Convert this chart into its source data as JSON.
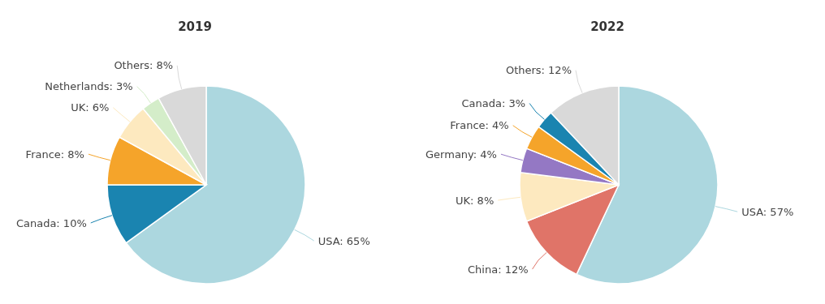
{
  "chart_data": [
    {
      "type": "pie",
      "title": "2019",
      "categories": [
        "USA",
        "Canada",
        "France",
        "UK",
        "Netherlands",
        "Others"
      ],
      "values": [
        65,
        10,
        8,
        6,
        3,
        8
      ],
      "value_labels": [
        "65%",
        "10%",
        "8%",
        "6%",
        "3%",
        "8%"
      ],
      "colors": [
        "#acd7df",
        "#1a84b0",
        "#f5a42a",
        "#fde9bf",
        "#d4edc9",
        "#d9d9d9"
      ]
    },
    {
      "type": "pie",
      "title": "2022",
      "categories": [
        "USA",
        "China",
        "UK",
        "Germany",
        "France",
        "Canada",
        "Others"
      ],
      "values": [
        57,
        12,
        8,
        4,
        4,
        3,
        12
      ],
      "value_labels": [
        "57%",
        "12%",
        "8%",
        "4%",
        "4%",
        "3%",
        "12%"
      ],
      "colors": [
        "#acd7df",
        "#e07468",
        "#fde9bf",
        "#9478c4",
        "#f5a42a",
        "#1a84b0",
        "#d9d9d9"
      ]
    }
  ]
}
